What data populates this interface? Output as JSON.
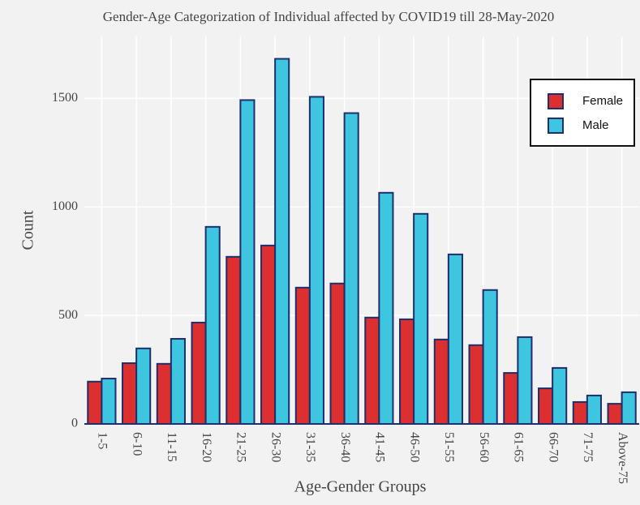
{
  "chart_data": {
    "type": "bar",
    "title": "Gender-Age Categorization of Individual affected by COVID19 till 28-May-2020",
    "x_label": "Age-Gender Groups",
    "y_label": "Count",
    "categories": [
      "1-5",
      "6-10",
      "11-15",
      "16-20",
      "21-25",
      "26-30",
      "31-35",
      "36-40",
      "41-45",
      "46-50",
      "51-55",
      "56-60",
      "61-65",
      "66-70",
      "71-75",
      "Above-75"
    ],
    "series": [
      {
        "name": "Female",
        "color": "#dc2f2f",
        "values": [
          195,
          280,
          277,
          467,
          770,
          822,
          628,
          647,
          490,
          482,
          389,
          363,
          235,
          164,
          101,
          93
        ]
      },
      {
        "name": "Male",
        "color": "#3ec6e0",
        "values": [
          209,
          348,
          392,
          908,
          1492,
          1682,
          1507,
          1432,
          1065,
          968,
          781,
          617,
          400,
          258,
          131,
          146
        ]
      }
    ],
    "ylim": [
      0,
      1785
    ],
    "yticks": [
      0,
      500,
      1000,
      1500
    ],
    "grid": true,
    "legend": "top-right"
  }
}
